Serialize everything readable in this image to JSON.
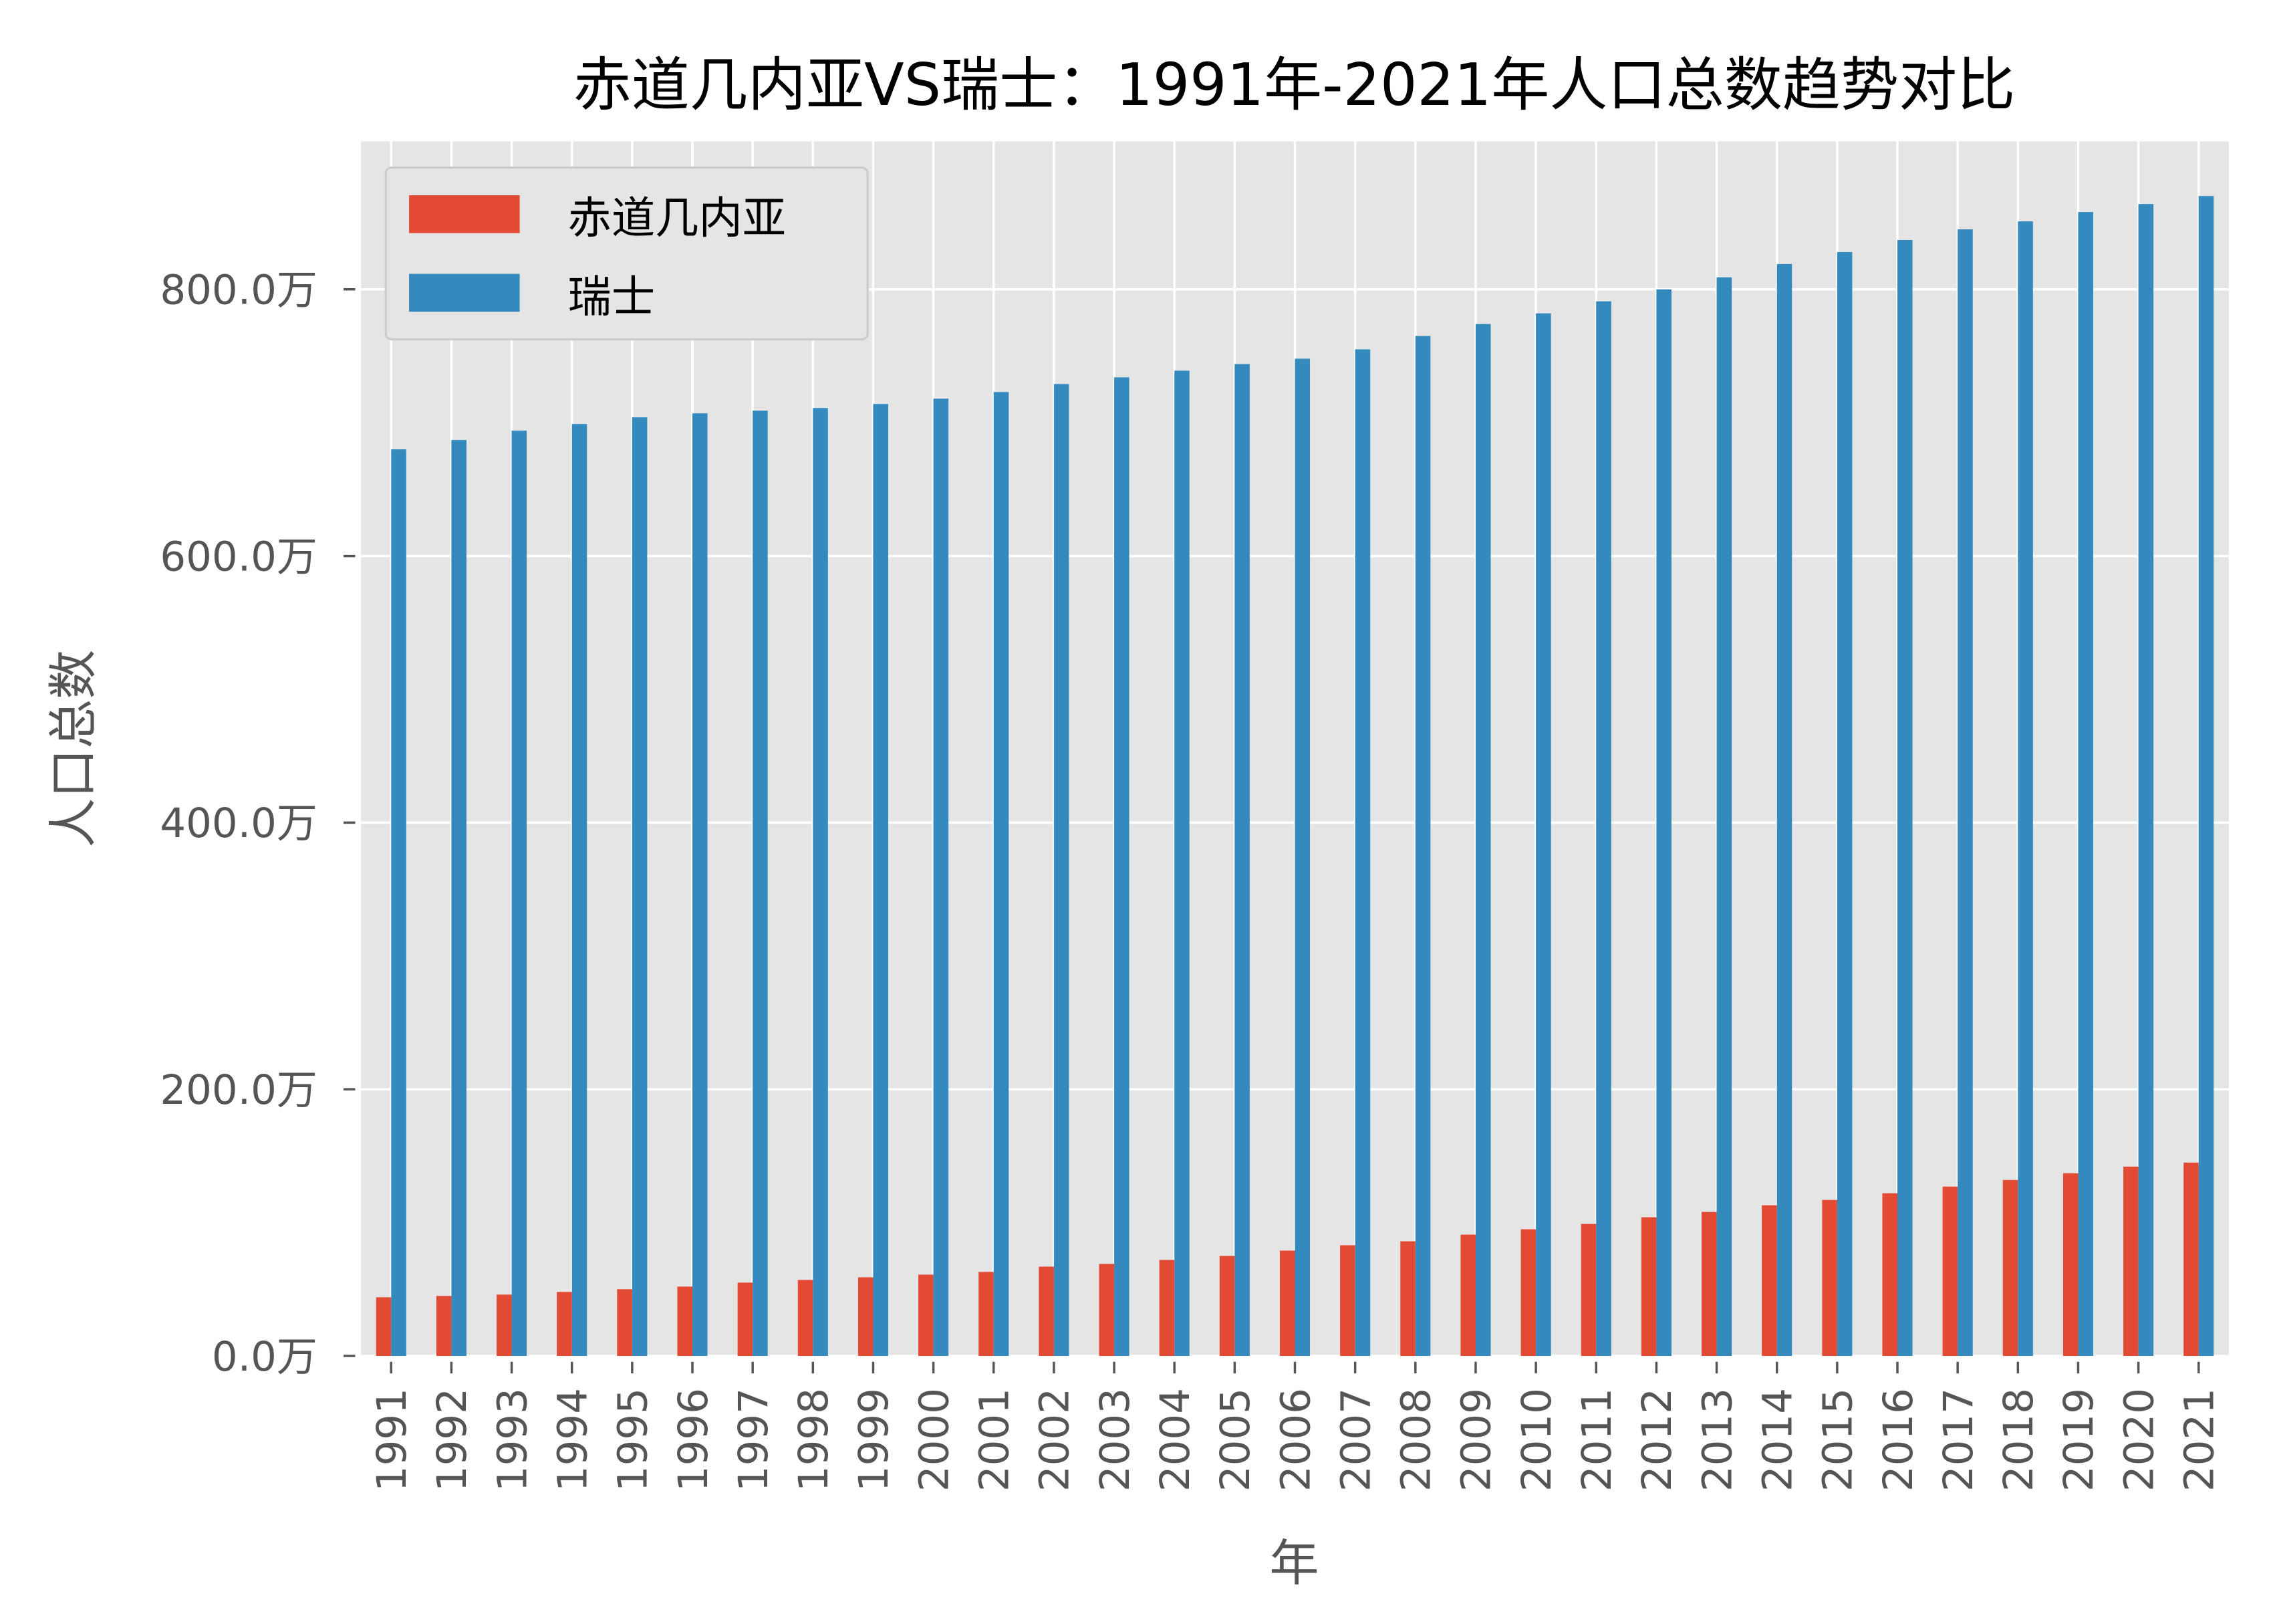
{
  "chart_data": {
    "type": "bar",
    "title": "赤道几内亚VS瑞士：1991年-2021年人口总数趋势对比",
    "xlabel": "年",
    "ylabel": "人口总数",
    "categories": [
      "1991",
      "1992",
      "1993",
      "1994",
      "1995",
      "1996",
      "1997",
      "1998",
      "1999",
      "2000",
      "2001",
      "2002",
      "2003",
      "2004",
      "2005",
      "2006",
      "2007",
      "2008",
      "2009",
      "2010",
      "2011",
      "2012",
      "2013",
      "2014",
      "2015",
      "2016",
      "2017",
      "2018",
      "2019",
      "2020",
      "2021"
    ],
    "series": [
      {
        "name": "赤道几内亚",
        "color": "#E24A33",
        "values": [
          44,
          45,
          46,
          48,
          50,
          52,
          55,
          57,
          59,
          61,
          63,
          67,
          69,
          72,
          75,
          79,
          83,
          86,
          91,
          95,
          99,
          104,
          108,
          113,
          117,
          122,
          127,
          132,
          137,
          142,
          145
        ]
      },
      {
        "name": "瑞士",
        "color": "#348ABD",
        "values": [
          680,
          687,
          694,
          699,
          704,
          707,
          709,
          711,
          714,
          718,
          723,
          729,
          734,
          739,
          744,
          748,
          755,
          765,
          774,
          782,
          791,
          800,
          809,
          819,
          828,
          837,
          845,
          851,
          858,
          864,
          870
        ]
      }
    ],
    "ylim": [
      0,
      911
    ],
    "yticks": [
      0,
      200,
      400,
      600,
      800
    ],
    "ytick_labels": [
      "0.0万",
      "200.0万",
      "400.0万",
      "600.0万",
      "800.0万"
    ],
    "grid": true,
    "legend": "top-left",
    "background": "#E5E5E5"
  }
}
